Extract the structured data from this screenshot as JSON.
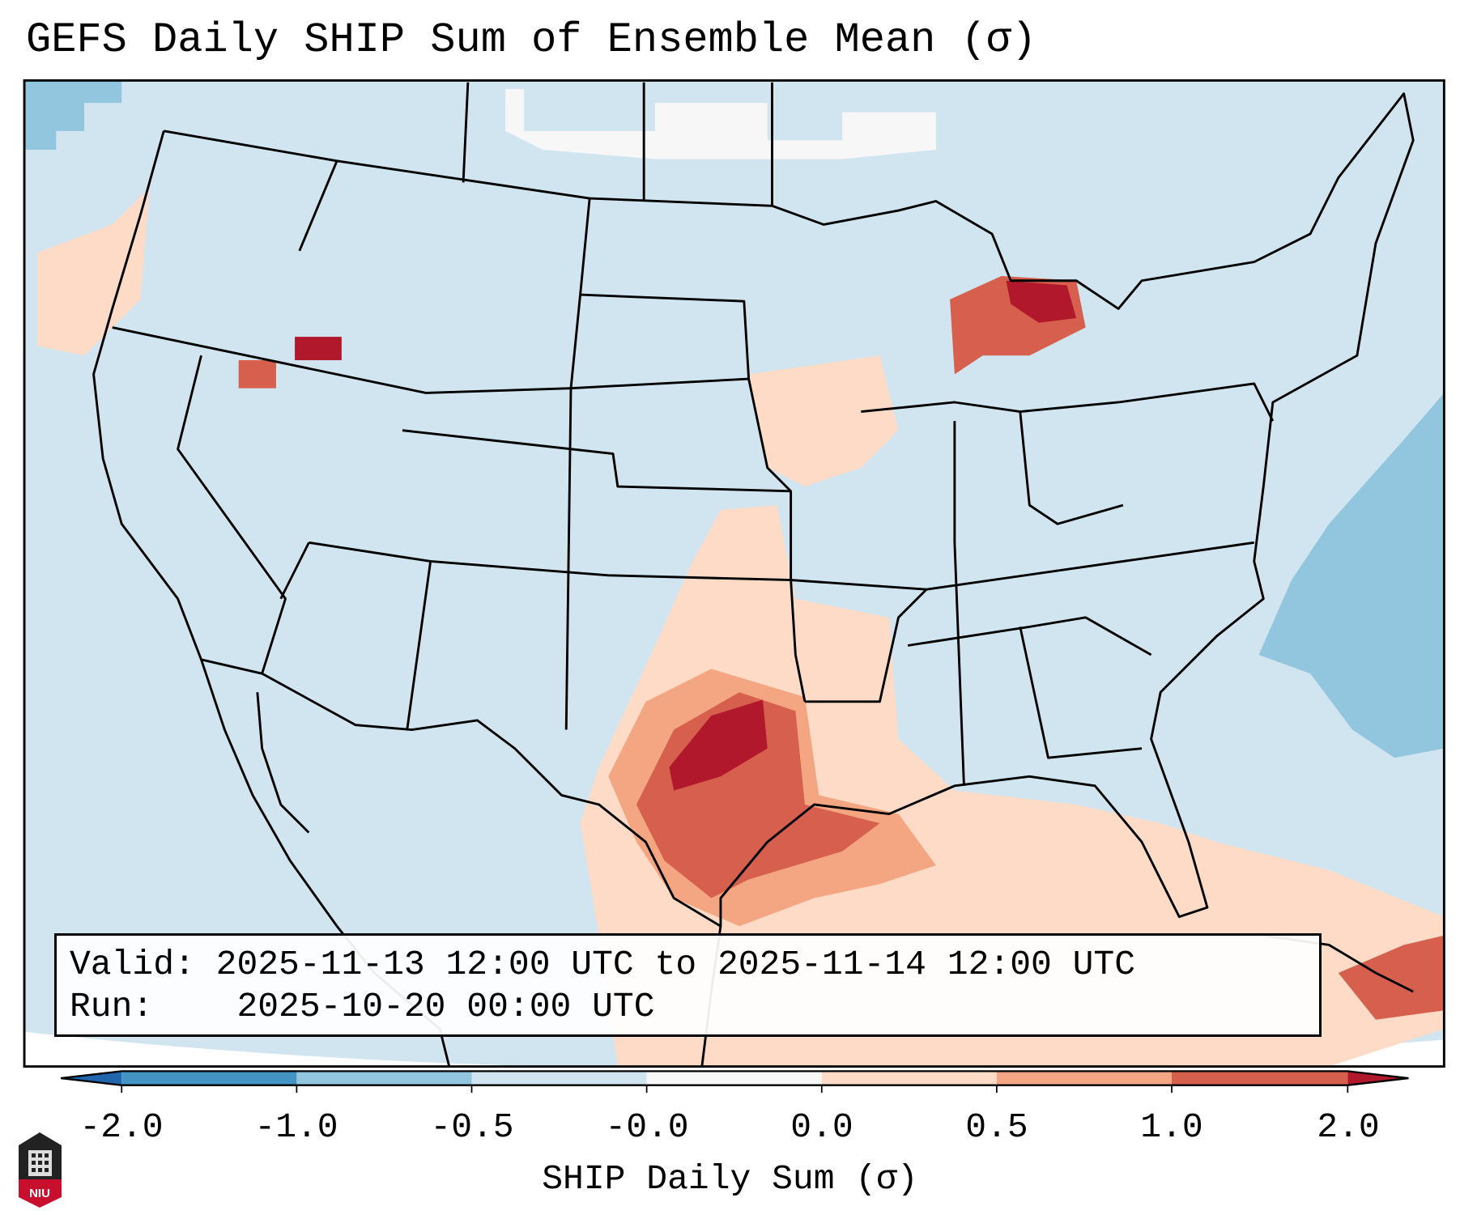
{
  "title": "GEFS Daily SHIP Sum of Ensemble Mean (σ)",
  "info": {
    "valid_label": "Valid:",
    "valid_value": "2025-11-13 12:00 UTC to 2025-11-14 12:00 UTC",
    "run_label": "Run:",
    "run_value": "2025-10-20 00:00 UTC"
  },
  "chart_data": {
    "type": "heatmap",
    "title": "GEFS Daily SHIP Sum of Ensemble Mean (σ)",
    "region": "Contiguous United States",
    "colorbar": {
      "label": "SHIP Daily Sum (σ)",
      "tick_labels": [
        "-2.0",
        "-1.0",
        "-0.5",
        "-0.0",
        "0.0",
        "0.5",
        "1.0",
        "2.0"
      ],
      "bins": [
        {
          "range": "< -2.0",
          "color": "#2166ac"
        },
        {
          "range": "-2.0 to -1.0",
          "color": "#4393c3"
        },
        {
          "range": "-1.0 to -0.5",
          "color": "#92c5de"
        },
        {
          "range": "-0.5 to -0.0",
          "color": "#d1e5f0"
        },
        {
          "range": "-0.0 to 0.0",
          "color": "#f7f7f7"
        },
        {
          "range": "0.0 to 0.5",
          "color": "#fddbc7"
        },
        {
          "range": "0.5 to 1.0",
          "color": "#f4a582"
        },
        {
          "range": "1.0 to 2.0",
          "color": "#d6604d"
        },
        {
          "range": "> 2.0",
          "color": "#b2182b"
        }
      ],
      "extend": "both"
    },
    "features": [
      {
        "area": "Texas / Oklahoma",
        "level": "1.0 to >2.0"
      },
      {
        "area": "Gulf Coast / Gulf of Mexico",
        "level": "0.5 to 1.0"
      },
      {
        "area": "Northern Lake Michigan / Michigan",
        "level": "1.0 to >2.0"
      },
      {
        "area": "Western Atlantic",
        "level": "-1.0 to -0.5"
      },
      {
        "area": "Most of CONUS",
        "level": "-0.5 to -0.0"
      }
    ]
  },
  "logo": {
    "text": "NIU"
  }
}
